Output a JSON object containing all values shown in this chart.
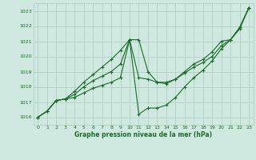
{
  "background_color": "#cfe8e0",
  "grid_color": "#b0cfc5",
  "line_color": "#1a6b2a",
  "xlabel": "Graphe pression niveau de la mer (hPa)",
  "xlabel_color": "#1a6b2a",
  "ylim": [
    1015.5,
    1023.5
  ],
  "xlim": [
    -0.5,
    23.5
  ],
  "yticks": [
    1016,
    1017,
    1018,
    1019,
    1020,
    1021,
    1022,
    1023
  ],
  "xticks": [
    0,
    1,
    2,
    3,
    4,
    5,
    6,
    7,
    8,
    9,
    10,
    11,
    12,
    13,
    14,
    15,
    16,
    17,
    18,
    19,
    20,
    21,
    22,
    23
  ],
  "series": [
    [
      1016.0,
      1016.4,
      1017.1,
      1017.2,
      1017.7,
      1018.3,
      1018.8,
      1019.3,
      1019.8,
      1020.4,
      1021.1,
      1021.1,
      1019.0,
      1018.3,
      1018.3,
      1018.5,
      1019.0,
      1019.5,
      1019.8,
      1020.3,
      1021.0,
      1021.1,
      1021.9,
      1023.2
    ],
    [
      1016.0,
      1016.4,
      1017.1,
      1017.2,
      1017.5,
      1018.0,
      1018.4,
      1018.7,
      1019.0,
      1019.5,
      1021.1,
      1018.6,
      1018.5,
      1018.3,
      1018.2,
      1018.5,
      1018.9,
      1019.3,
      1019.6,
      1020.0,
      1020.7,
      1021.1,
      1021.8,
      1023.2
    ],
    [
      1016.0,
      1016.4,
      1017.1,
      1017.2,
      1017.3,
      1017.6,
      1017.9,
      1018.1,
      1018.3,
      1018.6,
      1021.1,
      1016.2,
      1016.6,
      1016.6,
      1016.8,
      1017.3,
      1018.0,
      1018.6,
      1019.1,
      1019.7,
      1020.5,
      1021.1,
      1021.9,
      1023.2
    ]
  ]
}
